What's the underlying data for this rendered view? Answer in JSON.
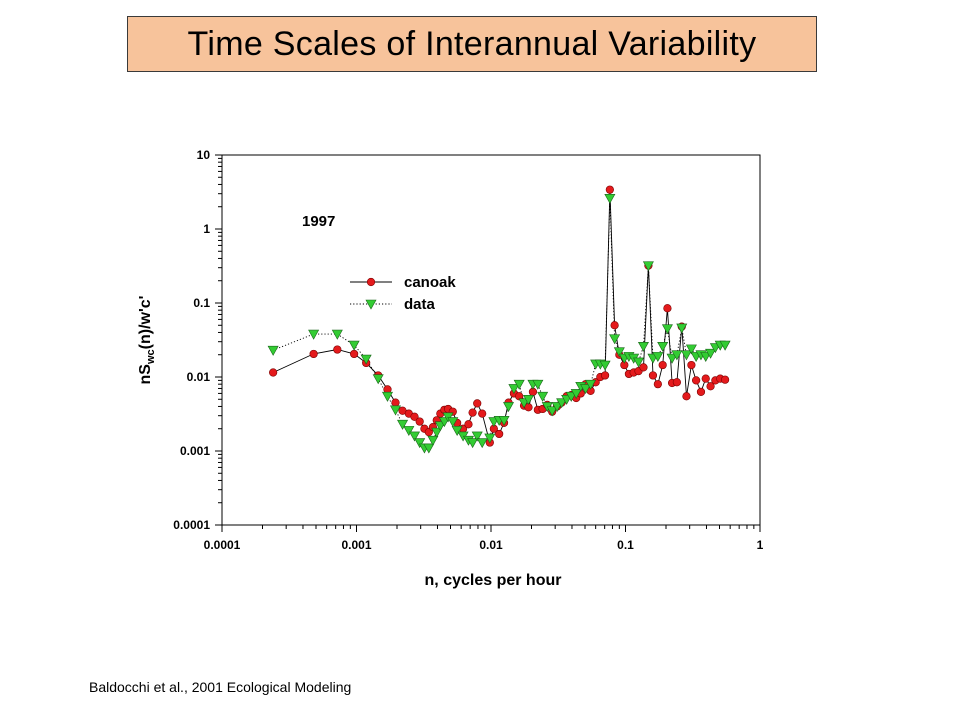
{
  "slide": {
    "title": "Time Scales of Interannual Variability",
    "citation": "Baldocchi et al., 2001 Ecological Modeling"
  },
  "chart_data": {
    "type": "scatter",
    "xscale": "log",
    "yscale": "log",
    "xlim": [
      0.0001,
      1
    ],
    "ylim": [
      0.0001,
      10
    ],
    "xlabel": "n, cycles per hour",
    "ylabel_parts": {
      "base": "nS",
      "sub": "wc",
      "rest": "(n)/w'c'"
    },
    "x_ticks": [
      "0.0001",
      "0.001",
      "0.01",
      "0.1",
      "1"
    ],
    "y_ticks": [
      "0.0001",
      "0.001",
      "0.01",
      "0.1",
      "1",
      "10"
    ],
    "annotation": "1997",
    "grid": false,
    "legend_position": "upper-left",
    "series": [
      {
        "name": "canoak",
        "marker": "circle",
        "line": "solid",
        "color": "#e41a1c",
        "line_color": "#000000",
        "points": [
          [
            0.00024,
            0.0115
          ],
          [
            0.00048,
            0.0205
          ],
          [
            0.00072,
            0.0235
          ],
          [
            0.00096,
            0.0205
          ],
          [
            0.00118,
            0.0155
          ],
          [
            0.00145,
            0.0105
          ],
          [
            0.0017,
            0.0068
          ],
          [
            0.00195,
            0.0045
          ],
          [
            0.0022,
            0.0035
          ],
          [
            0.00245,
            0.0032
          ],
          [
            0.0027,
            0.0029
          ],
          [
            0.00295,
            0.0025
          ],
          [
            0.0032,
            0.002
          ],
          [
            0.00345,
            0.0018
          ],
          [
            0.0037,
            0.0021
          ],
          [
            0.00395,
            0.0026
          ],
          [
            0.0042,
            0.0032
          ],
          [
            0.0045,
            0.0036
          ],
          [
            0.0048,
            0.0037
          ],
          [
            0.0052,
            0.0034
          ],
          [
            0.0056,
            0.0024
          ],
          [
            0.0062,
            0.002
          ],
          [
            0.0068,
            0.0023
          ],
          [
            0.0073,
            0.0033
          ],
          [
            0.0079,
            0.0044
          ],
          [
            0.0086,
            0.0032
          ],
          [
            0.0098,
            0.0013
          ],
          [
            0.0105,
            0.002
          ],
          [
            0.0115,
            0.0017
          ],
          [
            0.0125,
            0.0024
          ],
          [
            0.0135,
            0.0045
          ],
          [
            0.0148,
            0.006
          ],
          [
            0.0162,
            0.0055
          ],
          [
            0.0176,
            0.0041
          ],
          [
            0.019,
            0.0039
          ],
          [
            0.0205,
            0.0063
          ],
          [
            0.0223,
            0.0036
          ],
          [
            0.0242,
            0.0037
          ],
          [
            0.0262,
            0.0042
          ],
          [
            0.0285,
            0.0034
          ],
          [
            0.031,
            0.004
          ],
          [
            0.0335,
            0.0045
          ],
          [
            0.0365,
            0.0055
          ],
          [
            0.0395,
            0.0057
          ],
          [
            0.043,
            0.0052
          ],
          [
            0.0465,
            0.006
          ],
          [
            0.0505,
            0.008
          ],
          [
            0.055,
            0.0065
          ],
          [
            0.06,
            0.0085
          ],
          [
            0.065,
            0.01
          ],
          [
            0.0705,
            0.0105
          ],
          [
            0.0765,
            3.4
          ],
          [
            0.083,
            0.05
          ],
          [
            0.09,
            0.02
          ],
          [
            0.098,
            0.0145
          ],
          [
            0.106,
            0.011
          ],
          [
            0.115,
            0.0115
          ],
          [
            0.125,
            0.012
          ],
          [
            0.136,
            0.0135
          ],
          [
            0.148,
            0.32
          ],
          [
            0.16,
            0.0105
          ],
          [
            0.174,
            0.008
          ],
          [
            0.189,
            0.0145
          ],
          [
            0.205,
            0.085
          ],
          [
            0.222,
            0.0083
          ],
          [
            0.241,
            0.0085
          ],
          [
            0.262,
            0.048
          ],
          [
            0.284,
            0.0055
          ],
          [
            0.309,
            0.0145
          ],
          [
            0.335,
            0.009
          ],
          [
            0.364,
            0.0063
          ],
          [
            0.395,
            0.0095
          ],
          [
            0.429,
            0.0075
          ],
          [
            0.466,
            0.009
          ],
          [
            0.506,
            0.0095
          ],
          [
            0.55,
            0.0092
          ]
        ]
      },
      {
        "name": "data",
        "marker": "triangle-down",
        "line": "dotted",
        "color": "#33cc33",
        "line_color": "#000000",
        "points": [
          [
            0.00024,
            0.023
          ],
          [
            0.00048,
            0.038
          ],
          [
            0.00072,
            0.038
          ],
          [
            0.00096,
            0.027
          ],
          [
            0.00118,
            0.0175
          ],
          [
            0.00145,
            0.0095
          ],
          [
            0.0017,
            0.0055
          ],
          [
            0.00195,
            0.0036
          ],
          [
            0.0022,
            0.0023
          ],
          [
            0.00245,
            0.0019
          ],
          [
            0.0027,
            0.0016
          ],
          [
            0.00295,
            0.0013
          ],
          [
            0.0032,
            0.0011
          ],
          [
            0.00345,
            0.0011
          ],
          [
            0.0037,
            0.0014
          ],
          [
            0.00395,
            0.0018
          ],
          [
            0.0042,
            0.0022
          ],
          [
            0.0045,
            0.0025
          ],
          [
            0.0048,
            0.0029
          ],
          [
            0.0052,
            0.0025
          ],
          [
            0.0056,
            0.0019
          ],
          [
            0.0062,
            0.0016
          ],
          [
            0.0068,
            0.0014
          ],
          [
            0.0073,
            0.0013
          ],
          [
            0.0079,
            0.0016
          ],
          [
            0.0086,
            0.0013
          ],
          [
            0.0098,
            0.0015
          ],
          [
            0.0105,
            0.0025
          ],
          [
            0.0115,
            0.0026
          ],
          [
            0.0125,
            0.0026
          ],
          [
            0.0135,
            0.004
          ],
          [
            0.0148,
            0.007
          ],
          [
            0.0162,
            0.008
          ],
          [
            0.0176,
            0.0045
          ],
          [
            0.019,
            0.005
          ],
          [
            0.0205,
            0.008
          ],
          [
            0.0223,
            0.008
          ],
          [
            0.0242,
            0.0055
          ],
          [
            0.0262,
            0.004
          ],
          [
            0.0285,
            0.0035
          ],
          [
            0.031,
            0.004
          ],
          [
            0.0335,
            0.0045
          ],
          [
            0.0365,
            0.005
          ],
          [
            0.0395,
            0.0055
          ],
          [
            0.043,
            0.006
          ],
          [
            0.0465,
            0.0075
          ],
          [
            0.0505,
            0.007
          ],
          [
            0.055,
            0.008
          ],
          [
            0.06,
            0.015
          ],
          [
            0.065,
            0.015
          ],
          [
            0.0705,
            0.0145
          ],
          [
            0.0765,
            2.6
          ],
          [
            0.083,
            0.033
          ],
          [
            0.09,
            0.022
          ],
          [
            0.098,
            0.018
          ],
          [
            0.106,
            0.019
          ],
          [
            0.115,
            0.018
          ],
          [
            0.125,
            0.016
          ],
          [
            0.136,
            0.026
          ],
          [
            0.148,
            0.32
          ],
          [
            0.16,
            0.018
          ],
          [
            0.174,
            0.019
          ],
          [
            0.189,
            0.026
          ],
          [
            0.205,
            0.045
          ],
          [
            0.222,
            0.018
          ],
          [
            0.241,
            0.02
          ],
          [
            0.262,
            0.046
          ],
          [
            0.284,
            0.02
          ],
          [
            0.309,
            0.024
          ],
          [
            0.335,
            0.019
          ],
          [
            0.364,
            0.02
          ],
          [
            0.395,
            0.019
          ],
          [
            0.429,
            0.021
          ],
          [
            0.466,
            0.025
          ],
          [
            0.506,
            0.027
          ],
          [
            0.55,
            0.027
          ]
        ]
      }
    ]
  }
}
